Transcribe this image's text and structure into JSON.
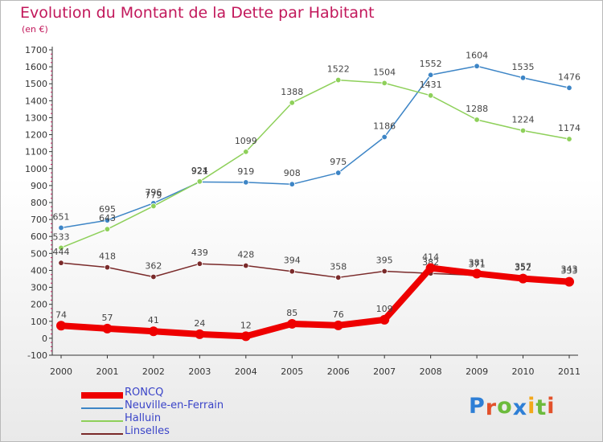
{
  "title": "Evolution du Montant de la Dette par Habitant",
  "subtitle": "(en €)",
  "logo_text": "Proxiti",
  "logo_colors": [
    "#2e7fd6",
    "#e2512b",
    "#6cbb3c",
    "#2e7fd6",
    "#f3a81a",
    "#6cbb3c",
    "#e2512b"
  ],
  "chart_data": {
    "type": "line",
    "title": "Evolution du Montant de la Dette par Habitant",
    "subtitle": "(en €)",
    "xlabel": "",
    "ylabel": "",
    "x": [
      "2000",
      "2001",
      "2002",
      "2003",
      "2004",
      "2005",
      "2006",
      "2007",
      "2008",
      "2009",
      "2010",
      "2011"
    ],
    "ylim": [
      -100,
      1700
    ],
    "yticks": [
      "-100",
      "0",
      "100",
      "200",
      "300",
      "400",
      "500",
      "600",
      "700",
      "800",
      "900",
      "1000",
      "1100",
      "1200",
      "1300",
      "1400",
      "1500",
      "1600",
      "1700"
    ],
    "grid": false,
    "legend_position": "bottom-left",
    "series": [
      {
        "name": "Neuville-en-Ferrain",
        "color": "#3d85c6",
        "values": [
          651,
          695,
          796,
          921,
          919,
          908,
          975,
          1186,
          1552,
          1604,
          1535,
          1476
        ]
      },
      {
        "name": "Halluin",
        "color": "#8ed05a",
        "values": [
          533,
          643,
          779,
          924,
          1099,
          1388,
          1522,
          1504,
          1431,
          1288,
          1224,
          1174
        ]
      },
      {
        "name": "Linselles",
        "color": "#7a2a2a",
        "values": [
          444,
          418,
          362,
          439,
          428,
          394,
          358,
          395,
          382,
          371,
          357,
          343
        ]
      },
      {
        "name": "RONCQ",
        "color": "#ee0000",
        "values": [
          74,
          57,
          41,
          24,
          12,
          85,
          76,
          109,
          414,
          381,
          352,
          333
        ]
      }
    ]
  }
}
